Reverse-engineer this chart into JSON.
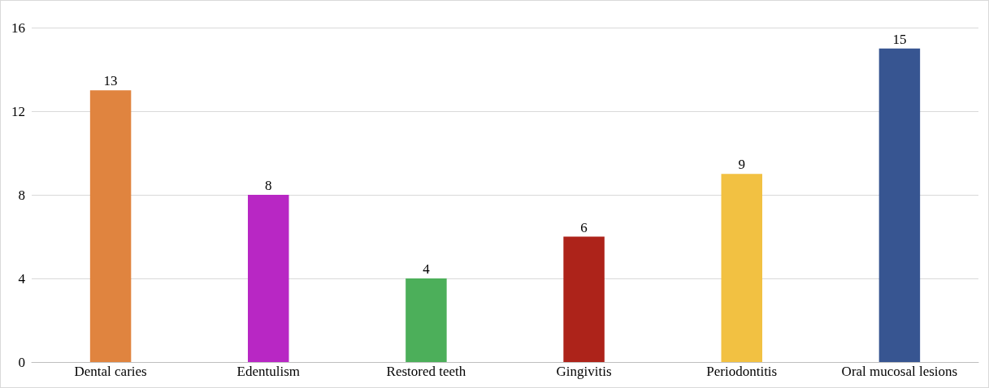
{
  "chart_data": {
    "type": "bar",
    "categories": [
      "Dental caries",
      "Edentulism",
      "Restored teeth",
      "Gingivitis",
      "Periodontitis",
      "Oral mucosal lesions"
    ],
    "values": [
      13,
      8,
      4,
      6,
      9,
      15
    ],
    "colors": [
      "#e0843f",
      "#b827c4",
      "#4caf5a",
      "#ad231a",
      "#f2c142",
      "#375591"
    ],
    "ylim": [
      0,
      16
    ],
    "yticks": [
      0,
      4,
      8,
      12,
      16
    ],
    "grid": "y",
    "data_labels": true
  }
}
